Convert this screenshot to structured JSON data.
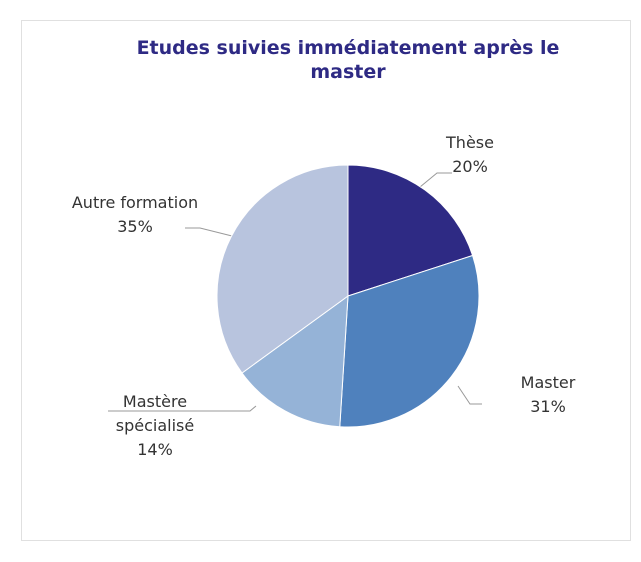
{
  "chart_data": {
    "type": "pie",
    "title": "Etudes suivies immédiatement après le master",
    "categories": [
      "Thèse",
      "Master",
      "Mastère spécialisé",
      "Autre formation"
    ],
    "values": [
      20,
      31,
      14,
      35
    ],
    "value_labels": [
      "20%",
      "31%",
      "14%",
      "35%"
    ],
    "colors": [
      "#2e2a84",
      "#4f81bd",
      "#95b3d7",
      "#b8c4de"
    ]
  }
}
